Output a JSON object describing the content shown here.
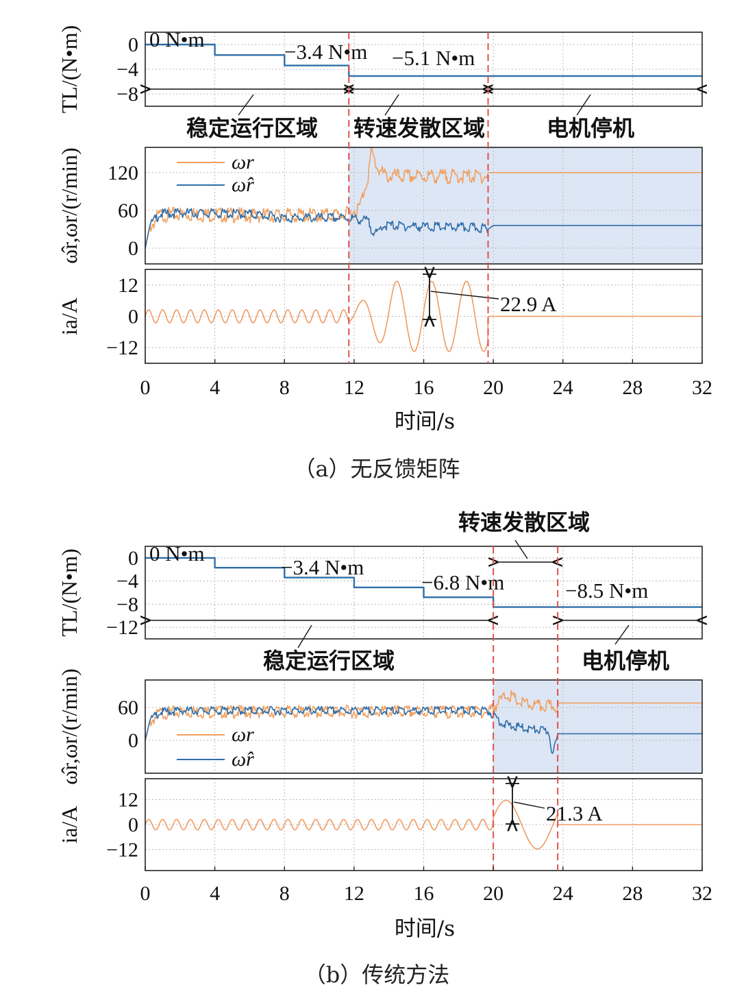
{
  "colors": {
    "actual_speed": "#f0a060",
    "estimated_speed": "#2f6ea8",
    "load_torque": "#2f6ea8",
    "current": "#ef9a60",
    "region_dashed": "#e0504c",
    "shade": "#dde6f5",
    "grid": "#b8b8b8"
  },
  "chart_data": [
    {
      "type": "line",
      "caption": "（a）无反馈矩阵",
      "xlabel": "时间/s",
      "xlim": [
        0,
        32
      ],
      "xticks": [
        "0",
        "4",
        "8",
        "12",
        "16",
        "20",
        "24",
        "28",
        "32"
      ],
      "divergence_start": 11.7,
      "stop_time": 19.7,
      "panels": {
        "torque": {
          "ylabel": "TL/(N•m)",
          "ylim": [
            -10,
            2
          ],
          "yticks": [
            "0",
            "−4",
            "−8"
          ],
          "x": [
            0,
            4,
            4,
            8,
            8,
            11.7,
            11.7,
            32
          ],
          "y": [
            0,
            0,
            -1.7,
            -1.7,
            -3.4,
            -3.4,
            -5.1,
            -5.1
          ],
          "annotations": [
            "0 N•m",
            "−3.4 N•m",
            "−5.1 N•m"
          ],
          "regions": [
            "稳定运行区域",
            "转速发散区域",
            "电机停机"
          ]
        },
        "speed": {
          "ylabel": "ω̂r,ωr/(r/min)",
          "ylim": [
            -25,
            160
          ],
          "yticks": [
            "0",
            "60",
            "120"
          ],
          "legend": [
            "ωr",
            "ω̂r"
          ],
          "actual_x": [
            0,
            0.3,
            0.8,
            2,
            6,
            10,
            11.7,
            12.3,
            12.8,
            13.0,
            13.3,
            13.8,
            15,
            19.7,
            20,
            32
          ],
          "actual_y": [
            0,
            40,
            58,
            60,
            58,
            58,
            60,
            70,
            120,
            160,
            135,
            120,
            120,
            120,
            120,
            120
          ],
          "estimated_x": [
            0,
            0.3,
            0.8,
            2,
            6,
            8,
            11.7,
            12.8,
            13.0,
            13.3,
            13.6,
            14,
            16,
            19.5,
            19.7,
            20,
            32
          ],
          "estimated_y": [
            0,
            40,
            58,
            60,
            58,
            52,
            52,
            47,
            35,
            25,
            40,
            40,
            38,
            36,
            30,
            36,
            36
          ]
        },
        "current": {
          "ylabel": "ia/A",
          "ylim": [
            -18,
            18
          ],
          "yticks": [
            "12",
            "0",
            "−12"
          ],
          "amplitude_label": "22.9 A",
          "amplitude": 22.9
        }
      }
    },
    {
      "type": "line",
      "caption": "（b）传统方法",
      "xlabel": "时间/s",
      "xlim": [
        0,
        32
      ],
      "xticks": [
        "0",
        "4",
        "8",
        "12",
        "16",
        "20",
        "24",
        "28",
        "32"
      ],
      "divergence_start": 20,
      "stop_time": 23.7,
      "panels": {
        "torque": {
          "ylabel": "TL/(N•m)",
          "ylim": [
            -14,
            2
          ],
          "yticks": [
            "0",
            "−4",
            "−8",
            "−12"
          ],
          "x": [
            0,
            4,
            4,
            8,
            8,
            12,
            12,
            16,
            16,
            20,
            20,
            32
          ],
          "y": [
            0,
            0,
            -1.7,
            -1.7,
            -3.4,
            -3.4,
            -5.1,
            -5.1,
            -6.8,
            -6.8,
            -8.5,
            -8.5
          ],
          "annotations": [
            "0 N•m",
            "−3.4 N•m",
            "−6.8 N•m",
            "−8.5 N•m"
          ],
          "regions": [
            "稳定运行区域",
            "转速发散区域",
            "电机停机"
          ]
        },
        "speed": {
          "ylabel": "ω̂r,ωr/(r/min)",
          "ylim": [
            -60,
            110
          ],
          "yticks": [
            "60",
            "0"
          ],
          "legend": [
            "ωr",
            "ω̂r"
          ],
          "actual_x": [
            0,
            0.3,
            0.8,
            2,
            19.7,
            20.3,
            20.8,
            21.5,
            22.5,
            23.7,
            32
          ],
          "actual_y": [
            0,
            40,
            55,
            58,
            58,
            75,
            90,
            75,
            68,
            68,
            68
          ],
          "estimated_x": [
            0,
            0.3,
            0.8,
            2,
            19.7,
            20.2,
            20.5,
            21,
            22,
            23.2,
            23.4,
            23.7,
            32
          ],
          "estimated_y": [
            0,
            40,
            55,
            58,
            58,
            45,
            35,
            30,
            25,
            20,
            -25,
            12,
            12
          ]
        },
        "current": {
          "ylabel": "ia/A",
          "ylim": [
            -22,
            22
          ],
          "yticks": [
            "12",
            "0",
            "−12"
          ],
          "amplitude_label": "21.3 A",
          "amplitude": 21.3
        }
      }
    }
  ]
}
